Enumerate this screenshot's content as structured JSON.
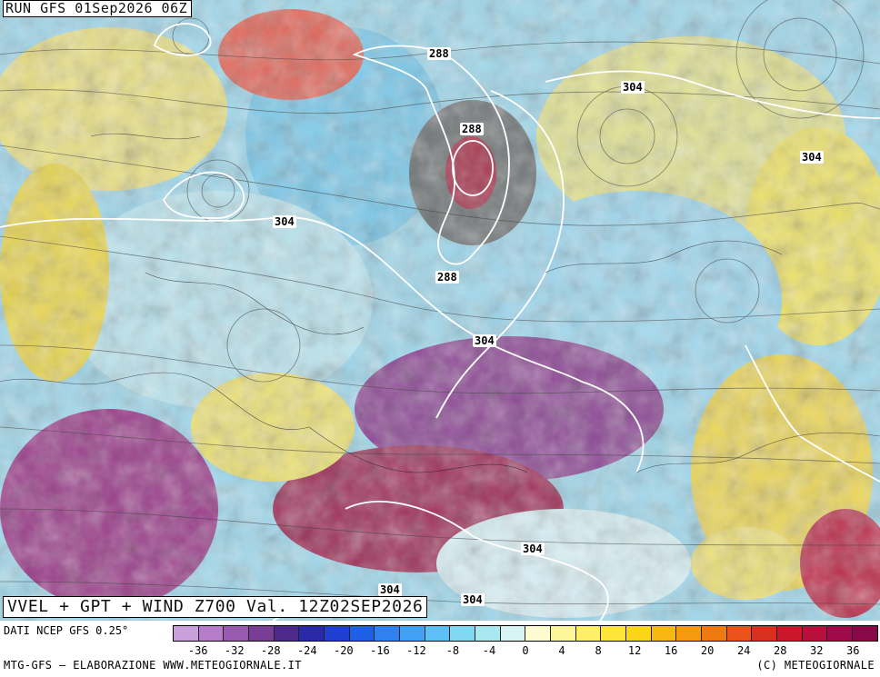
{
  "map": {
    "run_title": "RUN GFS 01Sep2026 06Z",
    "bottom_title": "VVEL + GPT + WIND Z700 Val. 12Z02SEP2026",
    "contour_labels": [
      "288",
      "304",
      "288",
      "304",
      "304",
      "288",
      "304",
      "304",
      "304",
      "304"
    ]
  },
  "legend": {
    "source": "DATI NCEP GFS 0.25°",
    "colors": [
      "#c9a0dc",
      "#b57cc9",
      "#9a5ab0",
      "#7a3d96",
      "#4b2a8c",
      "#2a2aa8",
      "#1e3fd0",
      "#1f5fe6",
      "#2f80f0",
      "#3fa0f4",
      "#5cc0f5",
      "#80d8f3",
      "#a8e8ef",
      "#d8f5f5",
      "#fffbd0",
      "#fff59a",
      "#ffef66",
      "#fde53a",
      "#fbd51a",
      "#f8b814",
      "#f59a10",
      "#f07a10",
      "#e8541a",
      "#d8301e",
      "#c8182a",
      "#b8103c",
      "#a00a4a",
      "#880848"
    ],
    "tick_labels": [
      "-36",
      "-32",
      "-28",
      "-24",
      "-20",
      "-16",
      "-12",
      "-8",
      "-4",
      "0",
      "4",
      "8",
      "12",
      "16",
      "20",
      "24",
      "28",
      "32",
      "36"
    ]
  },
  "footer": {
    "credit_left": "MTG-GFS – ELABORAZIONE WWW.METEOGIORNALE.IT",
    "credit_right": "(C) METEOGIORNALE"
  }
}
